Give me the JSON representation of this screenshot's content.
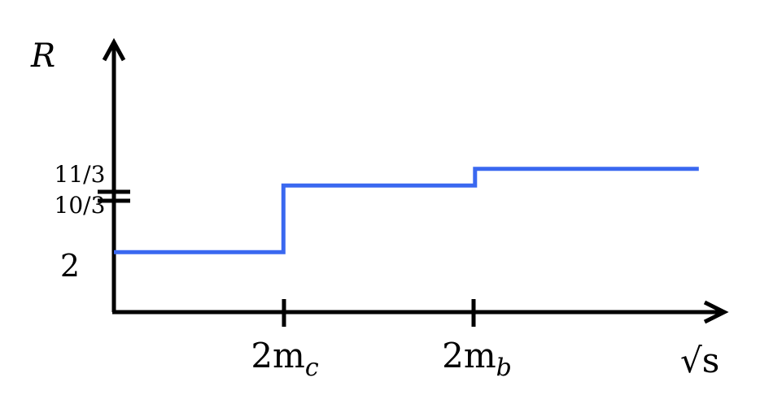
{
  "chart_data": {
    "type": "line",
    "step": true,
    "ylabel": "R",
    "xlabel": "√s",
    "x_ticks": [
      {
        "id": "mc",
        "label_main": "2m",
        "label_sub": "c",
        "x": 1.0
      },
      {
        "id": "mb",
        "label_main": "2m",
        "label_sub": "b",
        "x": 2.13
      }
    ],
    "y_ticks": [
      {
        "id": "elevthirds",
        "label": "11/3",
        "y": 3.6667
      },
      {
        "id": "tenthirds",
        "label": "10/3",
        "y": 3.3333
      },
      {
        "id": "two",
        "label": "2",
        "y": 2
      }
    ],
    "series": [
      {
        "color": "#3a68f0",
        "points": [
          {
            "x": 0,
            "y": 2
          },
          {
            "x": 1.0,
            "y": 2
          },
          {
            "x": 1.0,
            "y": 3.3333
          },
          {
            "x": 2.13,
            "y": 3.3333
          },
          {
            "x": 2.13,
            "y": 3.6667
          },
          {
            "x": 3.45,
            "y": 3.6667
          }
        ]
      }
    ],
    "xlim": [
      0,
      3.6
    ],
    "ylim": [
      0.8,
      6.2
    ],
    "grid": false,
    "legend": "none"
  }
}
